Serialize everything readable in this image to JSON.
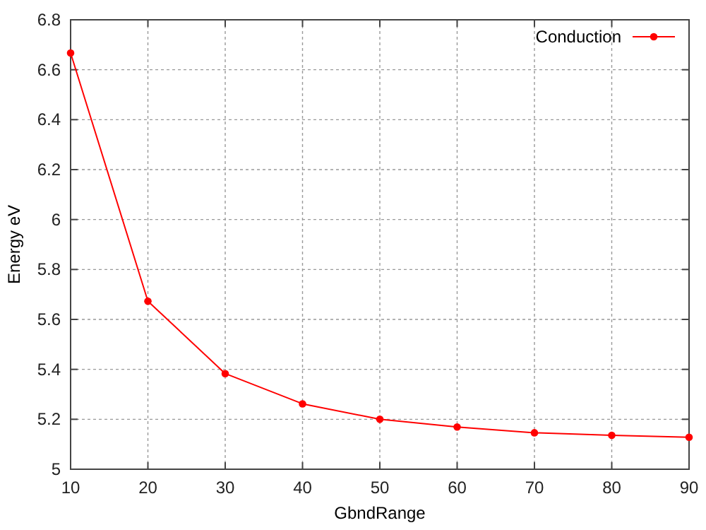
{
  "chart_data": {
    "type": "line",
    "xlabel": "GbndRange",
    "ylabel": "Energy eV",
    "x": [
      10,
      20,
      30,
      40,
      50,
      60,
      70,
      80,
      90
    ],
    "series": [
      {
        "name": "Conduction",
        "color": "#ff0000",
        "values": [
          6.667,
          5.673,
          5.383,
          5.262,
          5.2,
          5.169,
          5.146,
          5.136,
          5.128
        ]
      }
    ],
    "xlim": [
      10,
      90
    ],
    "xticks": [
      10,
      20,
      30,
      40,
      50,
      60,
      70,
      80,
      90
    ],
    "ylim": [
      5,
      6.8
    ],
    "yticks": [
      5,
      5.2,
      5.4,
      5.6,
      5.8,
      6,
      6.2,
      6.4,
      6.6,
      6.8
    ],
    "grid": true,
    "legend": "top right",
    "marker": "circle",
    "line_style": "solid"
  }
}
